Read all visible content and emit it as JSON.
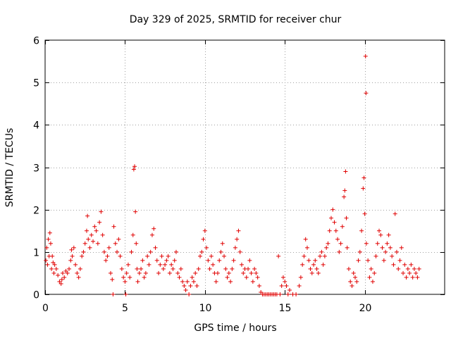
{
  "chart_data": {
    "type": "scatter",
    "title": "Day 329 of 2025, SRMTID for receiver chur",
    "xlabel": "GPS time / hours",
    "ylabel": "SRMTID / TECUs",
    "xlim": [
      0,
      25
    ],
    "ylim": [
      0,
      6
    ],
    "x_ticks": [
      0,
      5,
      10,
      15,
      20
    ],
    "x_tick_labels": [
      "0",
      "5",
      "10",
      "15",
      "20"
    ],
    "y_ticks": [
      0,
      1,
      2,
      3,
      4,
      5,
      6
    ],
    "y_tick_labels": [
      "0",
      "1",
      "2",
      "3",
      "4",
      "5",
      "6"
    ],
    "grid": true,
    "marker": "+",
    "series": [
      {
        "name": "SRMTID",
        "color": "#e00000",
        "points": [
          [
            0.05,
            0.8
          ],
          [
            0.1,
            1.1
          ],
          [
            0.15,
            0.7
          ],
          [
            0.2,
            1.3
          ],
          [
            0.25,
            0.9
          ],
          [
            0.3,
            1.45
          ],
          [
            0.35,
            1.2
          ],
          [
            0.4,
            0.6
          ],
          [
            0.45,
            0.9
          ],
          [
            0.5,
            0.75
          ],
          [
            0.55,
            0.5
          ],
          [
            0.6,
            0.7
          ],
          [
            0.7,
            0.6
          ],
          [
            0.8,
            0.45
          ],
          [
            0.9,
            0.3
          ],
          [
            1.0,
            0.25
          ],
          [
            1.05,
            0.35
          ],
          [
            1.1,
            0.5
          ],
          [
            1.2,
            0.4
          ],
          [
            1.3,
            0.55
          ],
          [
            1.4,
            0.5
          ],
          [
            1.5,
            0.6
          ],
          [
            1.6,
            0.8
          ],
          [
            1.65,
            1.05
          ],
          [
            1.7,
            0.9
          ],
          [
            1.8,
            1.1
          ],
          [
            1.9,
            0.7
          ],
          [
            2.0,
            0.5
          ],
          [
            2.1,
            0.4
          ],
          [
            2.2,
            0.6
          ],
          [
            2.3,
            0.9
          ],
          [
            2.4,
            1.0
          ],
          [
            2.5,
            1.2
          ],
          [
            2.6,
            1.5
          ],
          [
            2.65,
            1.85
          ],
          [
            2.7,
            1.3
          ],
          [
            2.8,
            1.1
          ],
          [
            2.9,
            1.4
          ],
          [
            3.0,
            1.25
          ],
          [
            3.1,
            1.6
          ],
          [
            3.2,
            1.5
          ],
          [
            3.3,
            1.2
          ],
          [
            3.4,
            1.7
          ],
          [
            3.5,
            1.95
          ],
          [
            3.6,
            1.4
          ],
          [
            3.7,
            1.0
          ],
          [
            3.8,
            0.8
          ],
          [
            3.9,
            0.9
          ],
          [
            4.0,
            1.1
          ],
          [
            4.1,
            0.5
          ],
          [
            4.2,
            0.35
          ],
          [
            4.25,
            0.0
          ],
          [
            4.3,
            1.6
          ],
          [
            4.4,
            1.2
          ],
          [
            4.5,
            1.0
          ],
          [
            4.6,
            1.3
          ],
          [
            4.7,
            0.9
          ],
          [
            4.8,
            0.6
          ],
          [
            4.9,
            0.4
          ],
          [
            5.0,
            0.3
          ],
          [
            5.05,
            0.0
          ],
          [
            5.1,
            0.5
          ],
          [
            5.2,
            0.7
          ],
          [
            5.3,
            0.4
          ],
          [
            5.4,
            1.0
          ],
          [
            5.5,
            1.4
          ],
          [
            5.55,
            2.95
          ],
          [
            5.6,
            3.02
          ],
          [
            5.65,
            1.95
          ],
          [
            5.7,
            1.2
          ],
          [
            5.75,
            0.6
          ],
          [
            5.8,
            0.3
          ],
          [
            5.9,
            0.5
          ],
          [
            6.0,
            0.6
          ],
          [
            6.1,
            0.8
          ],
          [
            6.2,
            0.4
          ],
          [
            6.3,
            0.5
          ],
          [
            6.4,
            0.9
          ],
          [
            6.5,
            0.7
          ],
          [
            6.6,
            1.0
          ],
          [
            6.7,
            1.4
          ],
          [
            6.8,
            1.55
          ],
          [
            6.9,
            1.1
          ],
          [
            7.0,
            0.8
          ],
          [
            7.1,
            0.5
          ],
          [
            7.2,
            0.7
          ],
          [
            7.3,
            0.9
          ],
          [
            7.4,
            0.6
          ],
          [
            7.5,
            0.7
          ],
          [
            7.6,
            0.8
          ],
          [
            7.7,
            0.9
          ],
          [
            7.8,
            0.5
          ],
          [
            7.9,
            0.7
          ],
          [
            8.0,
            0.6
          ],
          [
            8.1,
            0.8
          ],
          [
            8.2,
            1.0
          ],
          [
            8.3,
            0.5
          ],
          [
            8.4,
            0.4
          ],
          [
            8.5,
            0.6
          ],
          [
            8.6,
            0.3
          ],
          [
            8.7,
            0.2
          ],
          [
            8.8,
            0.1
          ],
          [
            8.9,
            0.3
          ],
          [
            9.0,
            0.0
          ],
          [
            9.1,
            0.2
          ],
          [
            9.2,
            0.4
          ],
          [
            9.3,
            0.3
          ],
          [
            9.4,
            0.5
          ],
          [
            9.5,
            0.2
          ],
          [
            9.6,
            0.6
          ],
          [
            9.7,
            0.9
          ],
          [
            9.8,
            1.0
          ],
          [
            9.9,
            1.3
          ],
          [
            10.0,
            1.5
          ],
          [
            10.1,
            1.1
          ],
          [
            10.2,
            0.8
          ],
          [
            10.3,
            0.6
          ],
          [
            10.4,
            0.9
          ],
          [
            10.5,
            0.7
          ],
          [
            10.6,
            0.5
          ],
          [
            10.7,
            0.3
          ],
          [
            10.8,
            0.5
          ],
          [
            10.9,
            0.8
          ],
          [
            11.0,
            1.0
          ],
          [
            11.1,
            1.2
          ],
          [
            11.2,
            0.9
          ],
          [
            11.3,
            0.6
          ],
          [
            11.4,
            0.4
          ],
          [
            11.5,
            0.5
          ],
          [
            11.6,
            0.3
          ],
          [
            11.7,
            0.6
          ],
          [
            11.8,
            0.8
          ],
          [
            11.9,
            1.1
          ],
          [
            12.0,
            1.3
          ],
          [
            12.1,
            1.5
          ],
          [
            12.2,
            1.0
          ],
          [
            12.3,
            0.7
          ],
          [
            12.4,
            0.5
          ],
          [
            12.5,
            0.6
          ],
          [
            12.6,
            0.4
          ],
          [
            12.7,
            0.6
          ],
          [
            12.8,
            0.8
          ],
          [
            12.9,
            0.5
          ],
          [
            13.0,
            0.3
          ],
          [
            13.1,
            0.6
          ],
          [
            13.2,
            0.5
          ],
          [
            13.3,
            0.4
          ],
          [
            13.4,
            0.2
          ],
          [
            13.5,
            0.05
          ],
          [
            13.6,
            0.0
          ],
          [
            13.7,
            0.0
          ],
          [
            13.8,
            0.0
          ],
          [
            13.9,
            0.0
          ],
          [
            14.0,
            0.0
          ],
          [
            14.1,
            0.0
          ],
          [
            14.2,
            0.0
          ],
          [
            14.3,
            0.0
          ],
          [
            14.4,
            0.0
          ],
          [
            14.5,
            0.0
          ],
          [
            14.6,
            0.9
          ],
          [
            14.7,
            0.0
          ],
          [
            14.8,
            0.2
          ],
          [
            14.9,
            0.4
          ],
          [
            15.0,
            0.3
          ],
          [
            15.1,
            0.2
          ],
          [
            15.2,
            0.0
          ],
          [
            15.3,
            0.1
          ],
          [
            15.5,
            0.0
          ],
          [
            15.7,
            0.0
          ],
          [
            15.9,
            0.2
          ],
          [
            16.0,
            0.4
          ],
          [
            16.1,
            0.7
          ],
          [
            16.2,
            0.9
          ],
          [
            16.3,
            1.3
          ],
          [
            16.4,
            1.1
          ],
          [
            16.5,
            0.8
          ],
          [
            16.6,
            0.6
          ],
          [
            16.7,
            0.5
          ],
          [
            16.8,
            0.7
          ],
          [
            16.9,
            0.8
          ],
          [
            17.0,
            0.6
          ],
          [
            17.1,
            0.5
          ],
          [
            17.2,
            0.9
          ],
          [
            17.3,
            1.0
          ],
          [
            17.4,
            0.7
          ],
          [
            17.5,
            0.9
          ],
          [
            17.6,
            1.1
          ],
          [
            17.7,
            1.2
          ],
          [
            17.8,
            1.5
          ],
          [
            17.9,
            1.8
          ],
          [
            18.0,
            2.0
          ],
          [
            18.1,
            1.7
          ],
          [
            18.2,
            1.5
          ],
          [
            18.3,
            1.3
          ],
          [
            18.4,
            1.0
          ],
          [
            18.5,
            1.2
          ],
          [
            18.6,
            1.6
          ],
          [
            18.7,
            2.3
          ],
          [
            18.75,
            2.45
          ],
          [
            18.8,
            2.9
          ],
          [
            18.85,
            1.8
          ],
          [
            18.9,
            1.1
          ],
          [
            19.0,
            0.6
          ],
          [
            19.1,
            0.3
          ],
          [
            19.2,
            0.2
          ],
          [
            19.3,
            0.5
          ],
          [
            19.4,
            0.4
          ],
          [
            19.5,
            0.3
          ],
          [
            19.6,
            0.8
          ],
          [
            19.7,
            1.0
          ],
          [
            19.8,
            1.5
          ],
          [
            19.9,
            2.5
          ],
          [
            19.95,
            2.75
          ],
          [
            20.0,
            1.9
          ],
          [
            20.05,
            5.62
          ],
          [
            20.08,
            4.75
          ],
          [
            20.1,
            1.2
          ],
          [
            20.2,
            0.8
          ],
          [
            20.3,
            0.4
          ],
          [
            20.4,
            0.6
          ],
          [
            20.5,
            0.3
          ],
          [
            20.6,
            0.5
          ],
          [
            20.7,
            0.9
          ],
          [
            20.8,
            1.2
          ],
          [
            20.9,
            1.5
          ],
          [
            21.0,
            1.4
          ],
          [
            21.1,
            1.1
          ],
          [
            21.2,
            0.8
          ],
          [
            21.3,
            1.0
          ],
          [
            21.4,
            1.2
          ],
          [
            21.5,
            1.4
          ],
          [
            21.6,
            1.1
          ],
          [
            21.7,
            0.9
          ],
          [
            21.8,
            0.7
          ],
          [
            21.9,
            1.9
          ],
          [
            22.0,
            1.0
          ],
          [
            22.1,
            0.6
          ],
          [
            22.2,
            0.8
          ],
          [
            22.3,
            1.1
          ],
          [
            22.4,
            0.5
          ],
          [
            22.5,
            0.7
          ],
          [
            22.6,
            0.4
          ],
          [
            22.7,
            0.6
          ],
          [
            22.8,
            0.5
          ],
          [
            22.9,
            0.7
          ],
          [
            23.0,
            0.4
          ],
          [
            23.1,
            0.6
          ],
          [
            23.2,
            0.5
          ],
          [
            23.3,
            0.4
          ],
          [
            23.4,
            0.6
          ]
        ]
      }
    ]
  }
}
